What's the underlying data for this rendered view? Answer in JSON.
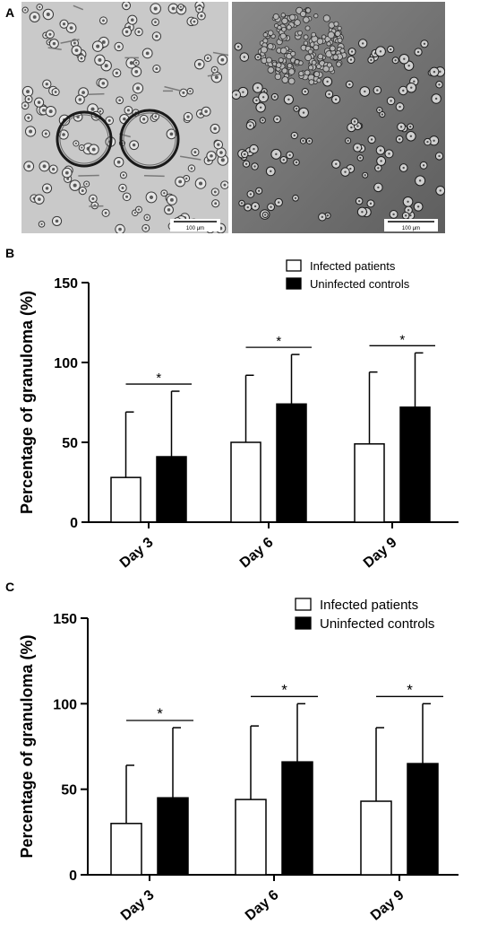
{
  "panels": {
    "a": {
      "letter": "A",
      "scale_left": "100 μm",
      "scale_right": "100 μm"
    },
    "b": {
      "letter": "B"
    },
    "c": {
      "letter": "C"
    }
  },
  "chart_data": [
    {
      "type": "bar",
      "panel": "B",
      "ylabel": "Percentage of granuloma (%)",
      "xlabel": "",
      "ylim": [
        0,
        150
      ],
      "yticks": [
        0,
        50,
        100,
        150
      ],
      "categories": [
        "Day 3",
        "Day 6",
        "Day 9"
      ],
      "legend": "top-right",
      "series": [
        {
          "name": "Infected patients",
          "color": "#ffffff",
          "values": [
            28,
            50,
            49
          ],
          "error": [
            41,
            42,
            45
          ]
        },
        {
          "name": "Uninfected controls",
          "color": "#000000",
          "values": [
            41,
            74,
            72
          ],
          "error": [
            41,
            31,
            34
          ]
        }
      ],
      "significance": [
        "*",
        "*",
        "*"
      ]
    },
    {
      "type": "bar",
      "panel": "C",
      "ylabel": "Percentage of granuloma (%)",
      "xlabel": "",
      "ylim": [
        0,
        150
      ],
      "yticks": [
        0,
        50,
        100,
        150
      ],
      "categories": [
        "Day 3",
        "Day 6",
        "Day 9"
      ],
      "legend": "top-right",
      "series": [
        {
          "name": "Infected patients",
          "color": "#ffffff",
          "values": [
            30,
            44,
            43
          ],
          "error": [
            34,
            43,
            43
          ]
        },
        {
          "name": "Uninfected controls",
          "color": "#000000",
          "values": [
            45,
            66,
            65
          ],
          "error": [
            41,
            34,
            35
          ]
        }
      ],
      "significance": [
        "*",
        "*",
        "*"
      ]
    }
  ]
}
